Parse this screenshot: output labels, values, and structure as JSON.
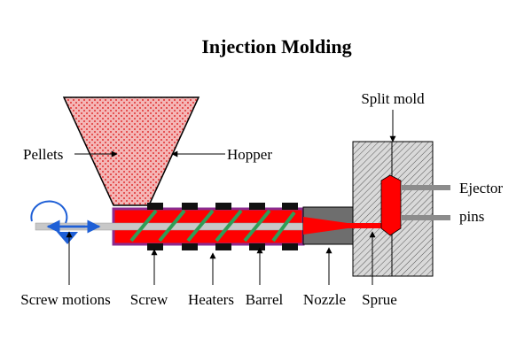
{
  "title": "Injection Molding",
  "labels": {
    "pellets": "Pellets",
    "hopper": "Hopper",
    "split_mold": "Split mold",
    "ejector_line1": "Ejector",
    "ejector_line2": "pins",
    "screw_motions": "Screw motions",
    "screw": "Screw",
    "heaters": "Heaters",
    "barrel": "Barrel",
    "nozzle": "Nozzle",
    "sprue": "Sprue"
  },
  "colors": {
    "melt": "#ff0000",
    "pellets_fill": "#f4b6b6",
    "pellets_dot": "#e03030",
    "barrel": "#8b2b8f",
    "screw_flight": "#2e9e57",
    "heater": "#111111",
    "nozzle": "#6e6e6e",
    "mold_fill": "#d9d9d9",
    "motion_arrow": "#1e5fd6",
    "ejector": "#8c8c8c"
  }
}
